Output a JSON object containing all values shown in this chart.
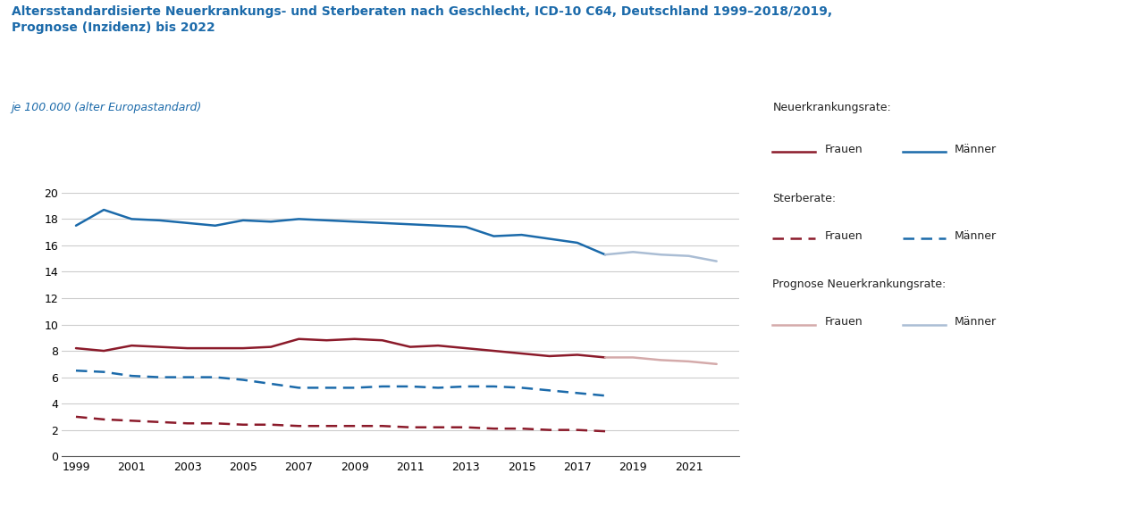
{
  "title_line1": "Altersstandardisierte Neuerkrankungs- und Sterberaten nach Geschlecht, ICD-10 C64, Deutschland 1999–2018/2019,",
  "title_line2": "Prognose (Inzidenz) bis 2022",
  "subtitle": "je 100.000 (alter Europastandard)",
  "title_color": "#1B6AAA",
  "subtitle_color": "#1B6AAA",
  "ylim": [
    0,
    20
  ],
  "yticks": [
    0,
    2,
    4,
    6,
    8,
    10,
    12,
    14,
    16,
    18,
    20
  ],
  "xticks": [
    1999,
    2001,
    2003,
    2005,
    2007,
    2009,
    2011,
    2013,
    2015,
    2017,
    2019,
    2021
  ],
  "neuerk_maenner_x": [
    1999,
    2000,
    2001,
    2002,
    2003,
    2004,
    2005,
    2006,
    2007,
    2008,
    2009,
    2010,
    2011,
    2012,
    2013,
    2014,
    2015,
    2016,
    2017,
    2018
  ],
  "neuerk_maenner_y": [
    17.5,
    18.7,
    18.0,
    17.9,
    17.7,
    17.5,
    17.9,
    17.8,
    18.0,
    17.9,
    17.8,
    17.7,
    17.6,
    17.5,
    17.4,
    16.7,
    16.8,
    16.5,
    16.2,
    15.3
  ],
  "neuerk_frauen_x": [
    1999,
    2000,
    2001,
    2002,
    2003,
    2004,
    2005,
    2006,
    2007,
    2008,
    2009,
    2010,
    2011,
    2012,
    2013,
    2014,
    2015,
    2016,
    2017,
    2018
  ],
  "neuerk_frauen_y": [
    8.2,
    8.0,
    8.4,
    8.3,
    8.2,
    8.2,
    8.2,
    8.3,
    8.9,
    8.8,
    8.9,
    8.8,
    8.3,
    8.4,
    8.2,
    8.0,
    7.8,
    7.6,
    7.7,
    7.5
  ],
  "sterbe_maenner_x": [
    1999,
    2000,
    2001,
    2002,
    2003,
    2004,
    2005,
    2006,
    2007,
    2008,
    2009,
    2010,
    2011,
    2012,
    2013,
    2014,
    2015,
    2016,
    2017,
    2018
  ],
  "sterbe_maenner_y": [
    6.5,
    6.4,
    6.1,
    6.0,
    6.0,
    6.0,
    5.8,
    5.5,
    5.2,
    5.2,
    5.2,
    5.3,
    5.3,
    5.2,
    5.3,
    5.3,
    5.2,
    5.0,
    4.8,
    4.6
  ],
  "sterbe_frauen_x": [
    1999,
    2000,
    2001,
    2002,
    2003,
    2004,
    2005,
    2006,
    2007,
    2008,
    2009,
    2010,
    2011,
    2012,
    2013,
    2014,
    2015,
    2016,
    2017,
    2018
  ],
  "sterbe_frauen_y": [
    3.0,
    2.8,
    2.7,
    2.6,
    2.5,
    2.5,
    2.4,
    2.4,
    2.3,
    2.3,
    2.3,
    2.3,
    2.2,
    2.2,
    2.2,
    2.1,
    2.1,
    2.0,
    2.0,
    1.9
  ],
  "prog_maenner_x": [
    2018,
    2019,
    2020,
    2021,
    2022
  ],
  "prog_maenner_y": [
    15.3,
    15.5,
    15.3,
    15.2,
    14.8
  ],
  "prog_frauen_x": [
    2018,
    2019,
    2020,
    2021,
    2022
  ],
  "prog_frauen_y": [
    7.5,
    7.5,
    7.3,
    7.2,
    7.0
  ],
  "color_maenner": "#1B6AAA",
  "color_frauen": "#8B1A2A",
  "color_prog_maenner": "#AABDD4",
  "color_prog_frauen": "#D4AAAA",
  "legend_neuerk_label": "Neuerkrankungsrate:",
  "legend_sterbe_label": "Sterberate:",
  "legend_prog_label": "Prognose Neuerkrankungsrate:",
  "legend_frauen": "Frauen",
  "legend_maenner": "Männer",
  "background_color": "#ffffff",
  "grid_color": "#cccccc",
  "lw_main": 1.8,
  "lw_prog": 1.8
}
